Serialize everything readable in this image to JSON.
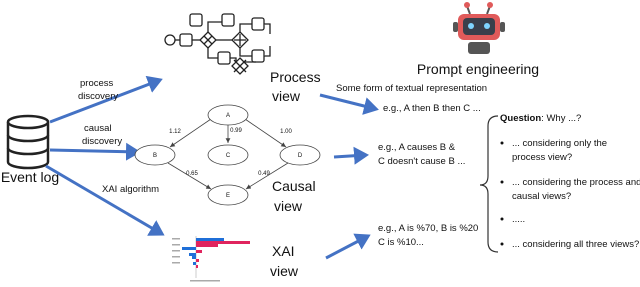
{
  "event_log": {
    "label": "Event log"
  },
  "algorithms": {
    "process_discovery": [
      "process",
      "discovery"
    ],
    "causal_discovery": [
      "causal",
      "discovery"
    ],
    "xai_algorithm": "XAI algorithm"
  },
  "views": {
    "process": [
      "Process",
      "view"
    ],
    "causal": [
      "Causal",
      "view"
    ],
    "xai": [
      "XAI",
      "view"
    ]
  },
  "causal_graph": {
    "nodes": [
      "A",
      "B",
      "C",
      "D",
      "E"
    ],
    "edge_labels": [
      "1.12",
      "0.99",
      "1.00",
      "0.65",
      "0.49"
    ]
  },
  "prompt_engineering": {
    "title": "Prompt engineering",
    "subtitle": "Some form of textual representation",
    "examples": {
      "process": [
        "e.g., A then B then C ..."
      ],
      "causal": [
        "e.g., A causes B &",
        "C doesn't cause B ..."
      ],
      "xai": [
        "e.g., A is %70, B is %20",
        "C is %10..."
      ]
    }
  },
  "questions": {
    "label": "Question",
    "text": ": Why ...?",
    "items": [
      [
        "... considering only the",
        "process view?"
      ],
      [
        "... considering the process and",
        "causal views?"
      ],
      [
        "....."
      ],
      [
        "... considering all three views?"
      ]
    ]
  }
}
